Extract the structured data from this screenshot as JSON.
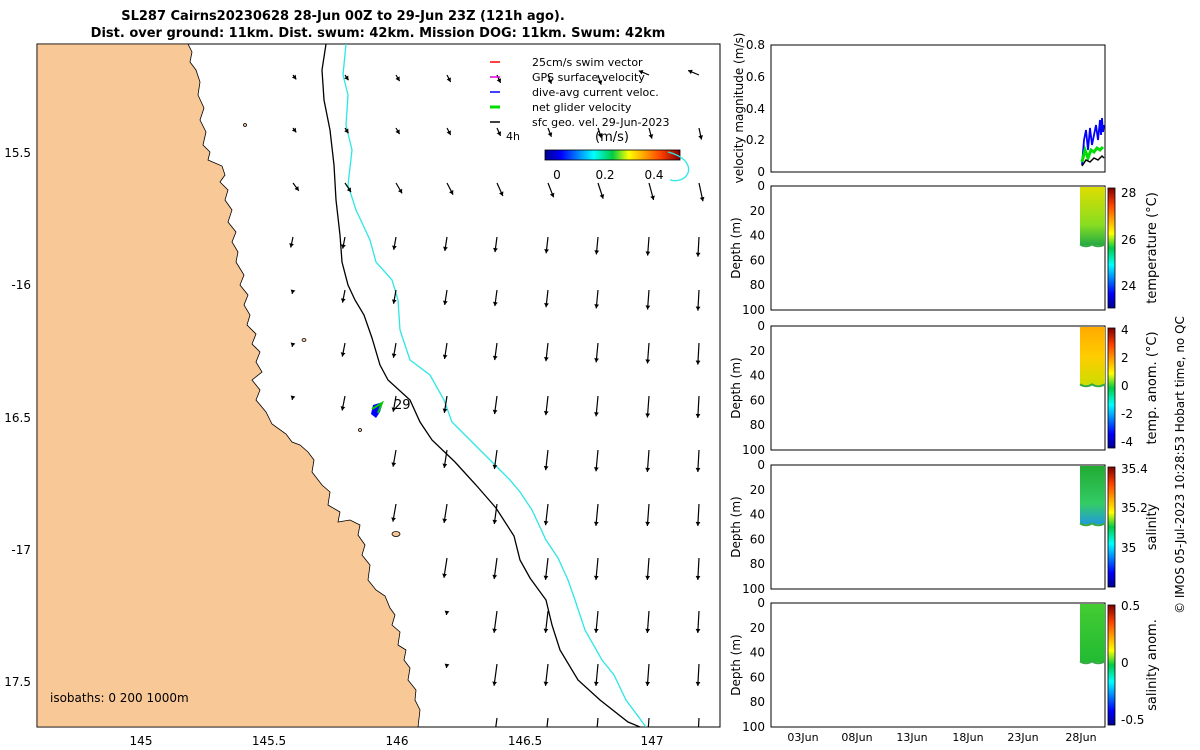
{
  "title": {
    "line1": "SL287 Cairns20230628 28-Jun 00Z to 29-Jun 23Z (121h ago).",
    "line2": "Dist. over ground: 11km. Dist. swum: 42km. Mission DOG: 11km. Swum: 42km"
  },
  "map": {
    "lon_ticks": [
      "145",
      "145.5",
      "146",
      "146.5",
      "147"
    ],
    "lat_ticks": [
      "15.5",
      "-16",
      "16.5",
      "-17",
      "17.5"
    ],
    "isobaths_label": "isobaths: 0   200  1000m",
    "label_4h": "4h",
    "label_29": "29",
    "legend": [
      {
        "label": "25cm/s swim vector",
        "color": "#ff0000"
      },
      {
        "label": "GPS surface velocity",
        "color": "#dd00dd"
      },
      {
        "label": "dive-avg current veloc.",
        "color": "#0000ff"
      },
      {
        "label": "net glider velocity",
        "color": "#00dd00"
      },
      {
        "label": "sfc geo. vel. 29-Jun-2023",
        "color": "#000000"
      }
    ],
    "colorbar": {
      "unit": "(m/s)",
      "ticks": [
        "0",
        "0.2",
        "0.4"
      ]
    },
    "colors": {
      "land": "#f9c897",
      "isobath_200": "#000000",
      "isobath_1000": "#2ee6e6"
    }
  },
  "velocity_panel": {
    "ylabel": "velocity magnitude (m/s)",
    "yticks": [
      "0",
      "0.2",
      "0.4",
      "0.6",
      "0.8"
    ]
  },
  "depth_panels": [
    {
      "ylabel": "Depth (m)",
      "yticks": [
        "0",
        "20",
        "40",
        "60",
        "80",
        "100"
      ],
      "cb_label": "temperature (°C)",
      "cb_ticks": [
        "28",
        "26",
        "24"
      ]
    },
    {
      "ylabel": "Depth (m)",
      "yticks": [
        "0",
        "20",
        "40",
        "60",
        "80",
        "100"
      ],
      "cb_label": "temp. anom. (°C)",
      "cb_ticks": [
        "4",
        "2",
        "0",
        "-2",
        "-4"
      ]
    },
    {
      "ylabel": "Depth (m)",
      "yticks": [
        "0",
        "20",
        "40",
        "60",
        "80",
        "100"
      ],
      "cb_label": "salinity",
      "cb_ticks": [
        "35.4",
        "35.2",
        "35"
      ]
    },
    {
      "ylabel": "Depth (m)",
      "yticks": [
        "0",
        "20",
        "40",
        "60",
        "80",
        "100"
      ],
      "cb_label": "salinity anom.",
      "cb_ticks": [
        "0.5",
        "0",
        "-0.5"
      ]
    }
  ],
  "time_ticks": [
    "03Jun",
    "08Jun",
    "13Jun",
    "18Jun",
    "23Jun",
    "28Jun"
  ],
  "credit": "© IMOS 05-Jul-2023 10:28:53 Hobart time, no QC"
}
